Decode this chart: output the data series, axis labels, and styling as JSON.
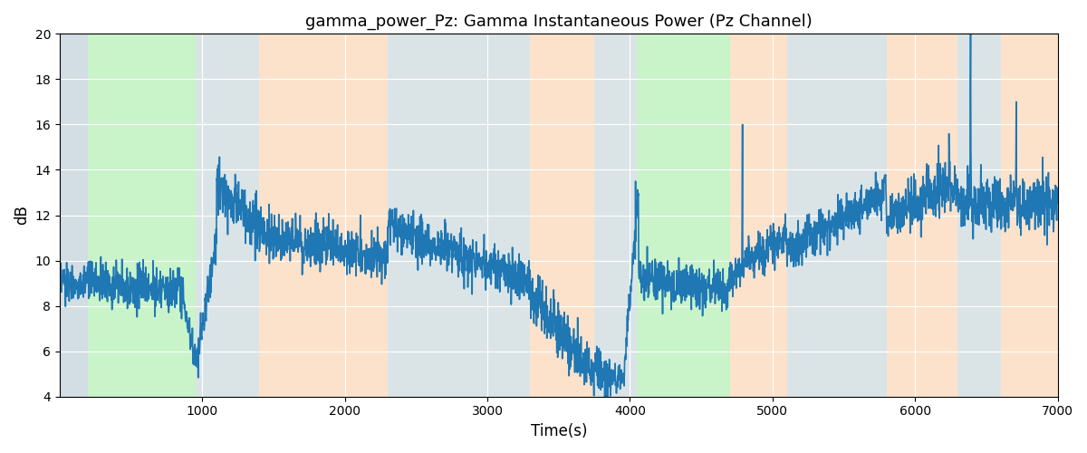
{
  "title": "gamma_power_Pz: Gamma Instantaneous Power (Pz Channel)",
  "xlabel": "Time(s)",
  "ylabel": "dB",
  "xlim": [
    0,
    7000
  ],
  "ylim": [
    4,
    20
  ],
  "xticks": [
    1000,
    2000,
    3000,
    4000,
    5000,
    6000,
    7000
  ],
  "yticks": [
    4,
    6,
    8,
    10,
    12,
    14,
    16,
    18,
    20
  ],
  "background_regions": [
    {
      "xmin": 0,
      "xmax": 200,
      "color": "#AEC6CF",
      "alpha": 0.5
    },
    {
      "xmin": 200,
      "xmax": 950,
      "color": "#90EE90",
      "alpha": 0.45
    },
    {
      "xmin": 950,
      "xmax": 1400,
      "color": "#AEC6CF",
      "alpha": 0.4
    },
    {
      "xmin": 1400,
      "xmax": 2300,
      "color": "#FFDAB9",
      "alpha": 0.7
    },
    {
      "xmin": 2300,
      "xmax": 3300,
      "color": "#AEC6CF",
      "alpha": 0.4
    },
    {
      "xmin": 3300,
      "xmax": 3750,
      "color": "#FFDAB9",
      "alpha": 0.7
    },
    {
      "xmin": 3750,
      "xmax": 4050,
      "color": "#AEC6CF",
      "alpha": 0.4
    },
    {
      "xmin": 4050,
      "xmax": 4700,
      "color": "#90EE90",
      "alpha": 0.45
    },
    {
      "xmin": 4700,
      "xmax": 5100,
      "color": "#FFDAB9",
      "alpha": 0.7
    },
    {
      "xmin": 5100,
      "xmax": 5800,
      "color": "#AEC6CF",
      "alpha": 0.4
    },
    {
      "xmin": 5800,
      "xmax": 6300,
      "color": "#FFDAB9",
      "alpha": 0.7
    },
    {
      "xmin": 6300,
      "xmax": 6600,
      "color": "#AEC6CF",
      "alpha": 0.4
    },
    {
      "xmin": 6600,
      "xmax": 7000,
      "color": "#FFDAB9",
      "alpha": 0.7
    }
  ],
  "line_color": "#1f77b4",
  "line_width": 1.2,
  "figsize": [
    12,
    5
  ],
  "dpi": 100,
  "facecolor": "#f8f8f8",
  "grid_color": "white",
  "grid_linewidth": 0.8
}
